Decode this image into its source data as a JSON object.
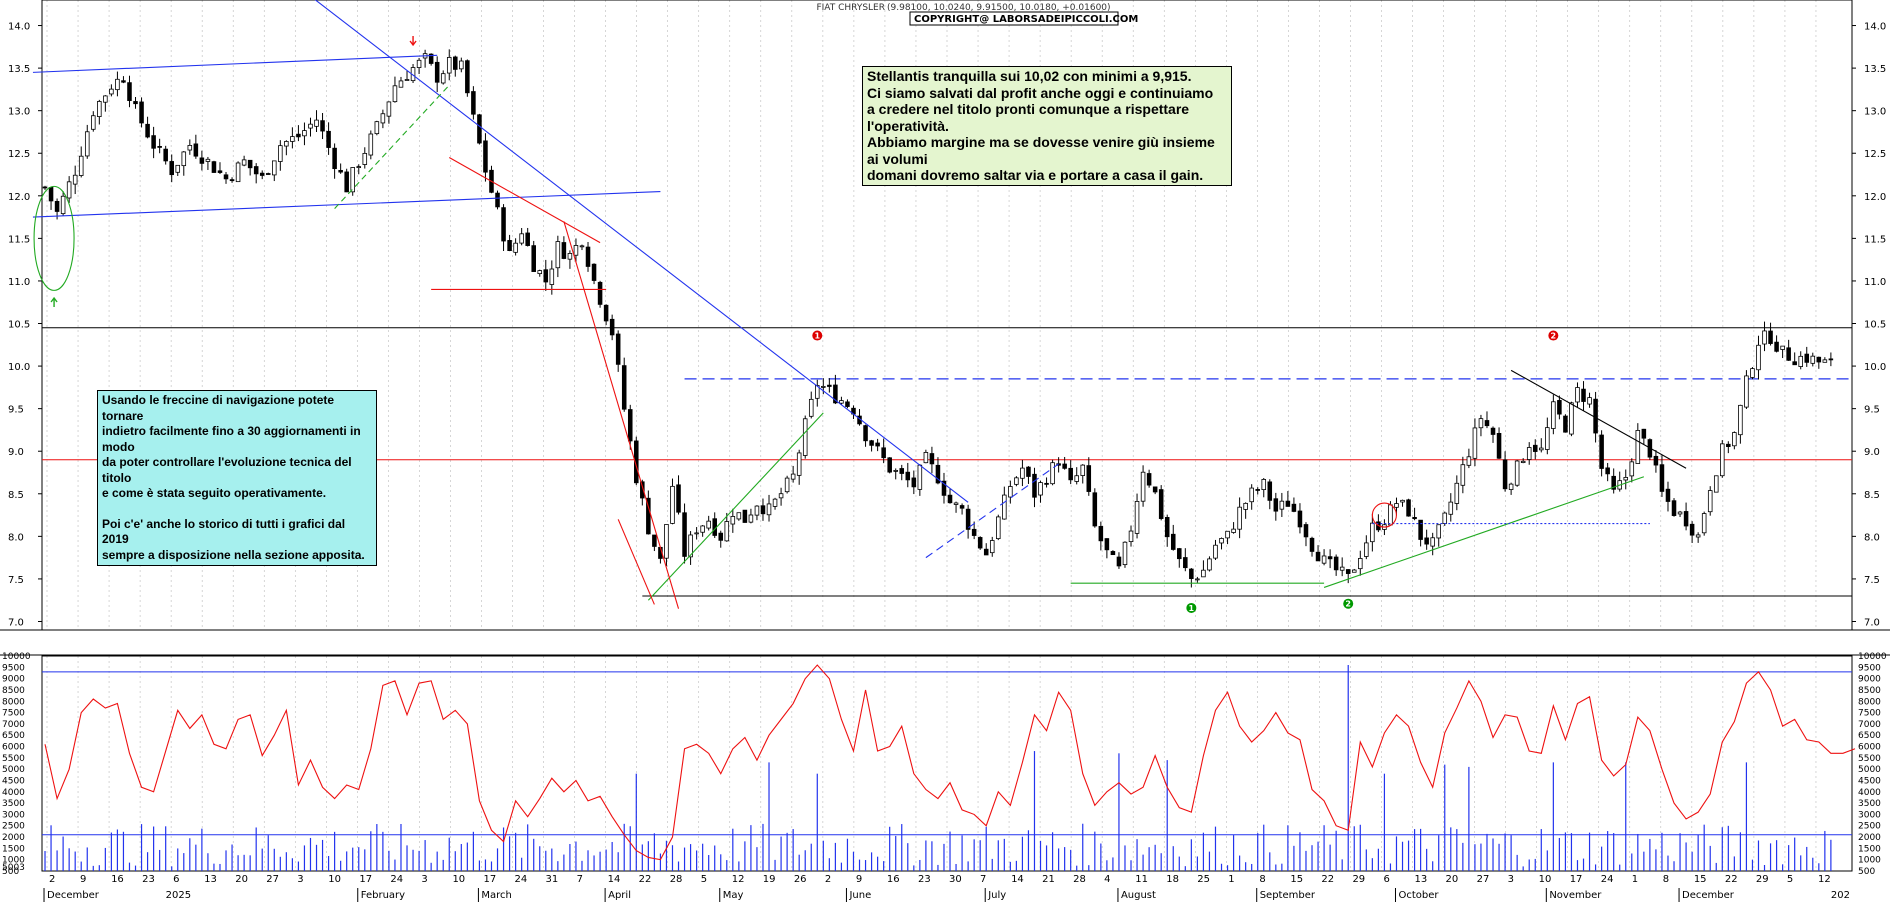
{
  "header": {
    "title": "FIAT CHRYSLER",
    "quote": "(9.98100, 10.0240, 9.91500, 10.0180, +0.01600)",
    "copyright": "COPYRIGHT@ LABORSADEIPICCOLI.COM"
  },
  "notes": {
    "main": [
      "Stellantis tranquilla sui 10,02 con minimi a 9,915.",
      "Ci siamo salvati dal profit anche oggi e continuiamo",
      "a credere nel titolo pronti comunque a rispettare l'operatività.",
      "Abbiamo margine ma se dovesse venire giù insieme ai volumi",
      "domani dovremo saltar via e portare a casa il gain."
    ],
    "nav": [
      "Usando le freccine di navigazione potete tornare",
      "indietro facilmente fino a 30 aggiornamenti in modo",
      "da poter controllare l'evoluzione tecnica del titolo",
      "e come è stata seguito operativamente.",
      "",
      "Poi c'e' anche lo storico di tutti i grafici dal 2019",
      "sempre a disposizione nella sezione apposita."
    ]
  },
  "chart_data": [
    {
      "type": "candlestick",
      "title": "FIAT CHRYSLER",
      "ylim": [
        6.9,
        14.3
      ],
      "yticks": [
        7.0,
        7.5,
        8.0,
        8.5,
        9.0,
        9.5,
        10.0,
        10.5,
        11.0,
        11.5,
        12.0,
        12.5,
        13.0,
        13.5,
        14.0
      ],
      "grid": true,
      "close_path": [
        [
          0,
          12.1
        ],
        [
          2,
          11.8
        ],
        [
          5,
          12.3
        ],
        [
          8,
          13.0
        ],
        [
          11,
          13.3
        ],
        [
          13,
          13.4
        ],
        [
          15,
          13.0
        ],
        [
          18,
          12.6
        ],
        [
          21,
          12.3
        ],
        [
          24,
          12.6
        ],
        [
          27,
          12.4
        ],
        [
          30,
          12.2
        ],
        [
          33,
          12.4
        ],
        [
          36,
          12.2
        ],
        [
          39,
          12.6
        ],
        [
          42,
          12.7
        ],
        [
          45,
          12.9
        ],
        [
          48,
          12.4
        ],
        [
          50,
          12.1
        ],
        [
          52,
          12.4
        ],
        [
          55,
          12.8
        ],
        [
          58,
          13.3
        ],
        [
          61,
          13.5
        ],
        [
          63,
          13.6
        ],
        [
          65,
          13.4
        ],
        [
          67,
          13.55
        ],
        [
          69,
          13.5
        ],
        [
          71,
          12.9
        ],
        [
          73,
          12.3
        ],
        [
          75,
          11.8
        ],
        [
          77,
          11.3
        ],
        [
          79,
          11.6
        ],
        [
          81,
          11.2
        ],
        [
          83,
          11.0
        ],
        [
          85,
          11.4
        ],
        [
          87,
          11.3
        ],
        [
          89,
          11.5
        ],
        [
          91,
          11.0
        ],
        [
          92,
          10.8
        ],
        [
          94,
          10.4
        ],
        [
          96,
          9.5
        ],
        [
          98,
          8.7
        ],
        [
          100,
          8.1
        ],
        [
          102,
          7.7
        ],
        [
          104,
          8.6
        ],
        [
          106,
          7.8
        ],
        [
          108,
          8.1
        ],
        [
          110,
          8.2
        ],
        [
          112,
          8.0
        ],
        [
          114,
          8.3
        ],
        [
          116,
          8.2
        ],
        [
          118,
          8.4
        ],
        [
          120,
          8.3
        ],
        [
          122,
          8.5
        ],
        [
          124,
          8.7
        ],
        [
          126,
          9.3
        ],
        [
          128,
          9.8
        ],
        [
          130,
          9.7
        ],
        [
          132,
          9.6
        ],
        [
          134,
          9.5
        ],
        [
          136,
          9.2
        ],
        [
          138,
          9.0
        ],
        [
          140,
          8.8
        ],
        [
          142,
          8.7
        ],
        [
          144,
          8.6
        ],
        [
          146,
          8.9
        ],
        [
          148,
          8.7
        ],
        [
          150,
          8.4
        ],
        [
          152,
          8.3
        ],
        [
          154,
          8.0
        ],
        [
          156,
          7.8
        ],
        [
          158,
          8.2
        ],
        [
          160,
          8.6
        ],
        [
          162,
          8.8
        ],
        [
          164,
          8.5
        ],
        [
          166,
          8.7
        ],
        [
          168,
          8.9
        ],
        [
          170,
          8.6
        ],
        [
          172,
          8.8
        ],
        [
          174,
          8.1
        ],
        [
          176,
          7.8
        ],
        [
          178,
          7.6
        ],
        [
          180,
          8.1
        ],
        [
          182,
          8.8
        ],
        [
          184,
          8.5
        ],
        [
          186,
          8.0
        ],
        [
          188,
          7.7
        ],
        [
          190,
          7.5
        ],
        [
          192,
          7.6
        ],
        [
          194,
          7.9
        ],
        [
          196,
          8.0
        ],
        [
          198,
          8.3
        ],
        [
          200,
          8.5
        ],
        [
          202,
          8.6
        ],
        [
          204,
          8.3
        ],
        [
          206,
          8.4
        ],
        [
          208,
          8.2
        ],
        [
          210,
          7.9
        ],
        [
          212,
          7.7
        ],
        [
          214,
          7.6
        ],
        [
          216,
          7.5
        ],
        [
          218,
          7.8
        ],
        [
          220,
          8.1
        ],
        [
          222,
          8.2
        ],
        [
          224,
          8.4
        ],
        [
          226,
          8.3
        ],
        [
          228,
          8.0
        ],
        [
          230,
          7.9
        ],
        [
          232,
          8.2
        ],
        [
          234,
          8.6
        ],
        [
          236,
          9.0
        ],
        [
          238,
          9.4
        ],
        [
          240,
          9.2
        ],
        [
          242,
          8.6
        ],
        [
          244,
          8.8
        ],
        [
          246,
          9.1
        ],
        [
          248,
          9.0
        ],
        [
          250,
          9.5
        ],
        [
          252,
          9.3
        ],
        [
          254,
          9.7
        ],
        [
          256,
          9.6
        ],
        [
          258,
          8.8
        ],
        [
          260,
          8.5
        ],
        [
          262,
          8.7
        ],
        [
          264,
          9.2
        ],
        [
          266,
          9.0
        ],
        [
          268,
          8.5
        ],
        [
          270,
          8.3
        ],
        [
          272,
          8.2
        ],
        [
          274,
          8.0
        ],
        [
          276,
          8.6
        ],
        [
          278,
          9.0
        ],
        [
          280,
          9.2
        ],
        [
          282,
          9.8
        ],
        [
          284,
          10.3
        ],
        [
          286,
          10.35
        ],
        [
          288,
          10.15
        ],
        [
          290,
          10.1
        ],
        [
          292,
          10.1
        ],
        [
          294,
          10.05
        ],
        [
          296,
          10.02
        ]
      ],
      "levels": [
        10.45,
        8.9,
        7.3
      ],
      "dashed_levels": [
        9.85
      ],
      "markers": [
        {
          "text": "1",
          "color": "#dd0000",
          "at": [
            128,
            10.3
          ]
        },
        {
          "text": "2",
          "color": "#dd0000",
          "at": [
            250,
            10.3
          ]
        },
        {
          "text": "1",
          "color": "#009900",
          "at": [
            190,
            7.1
          ]
        },
        {
          "text": "2",
          "color": "#009900",
          "at": [
            216,
            7.15
          ]
        }
      ]
    },
    {
      "type": "bar+line",
      "ylim": [
        500,
        10000
      ],
      "yticks": [
        500,
        1000,
        1500,
        2000,
        2500,
        3000,
        3500,
        4000,
        4500,
        5000,
        5500,
        6000,
        6500,
        7000,
        7500,
        8000,
        8500,
        9000,
        9500,
        10000
      ],
      "levels": [
        9300,
        2100
      ],
      "oscillator": [
        [
          0,
          6100
        ],
        [
          2,
          3700
        ],
        [
          4,
          5000
        ],
        [
          6,
          7500
        ],
        [
          8,
          8100
        ],
        [
          10,
          7700
        ],
        [
          12,
          7900
        ],
        [
          14,
          5700
        ],
        [
          16,
          4200
        ],
        [
          18,
          4000
        ],
        [
          20,
          5800
        ],
        [
          22,
          7600
        ],
        [
          24,
          6800
        ],
        [
          26,
          7400
        ],
        [
          28,
          6100
        ],
        [
          30,
          5900
        ],
        [
          32,
          7200
        ],
        [
          34,
          7400
        ],
        [
          36,
          5600
        ],
        [
          38,
          6500
        ],
        [
          40,
          7600
        ],
        [
          42,
          4300
        ],
        [
          44,
          5400
        ],
        [
          46,
          4200
        ],
        [
          48,
          3700
        ],
        [
          50,
          4300
        ],
        [
          52,
          4100
        ],
        [
          54,
          5900
        ],
        [
          56,
          8700
        ],
        [
          58,
          8900
        ],
        [
          60,
          7400
        ],
        [
          62,
          8800
        ],
        [
          64,
          8900
        ],
        [
          66,
          7200
        ],
        [
          68,
          7600
        ],
        [
          70,
          7000
        ],
        [
          72,
          3600
        ],
        [
          74,
          2300
        ],
        [
          76,
          1800
        ],
        [
          78,
          3600
        ],
        [
          80,
          2900
        ],
        [
          82,
          3700
        ],
        [
          84,
          4600
        ],
        [
          86,
          4000
        ],
        [
          88,
          4500
        ],
        [
          90,
          3600
        ],
        [
          92,
          3800
        ],
        [
          94,
          2900
        ],
        [
          96,
          2100
        ],
        [
          98,
          1400
        ],
        [
          100,
          1100
        ],
        [
          102,
          1000
        ],
        [
          104,
          2000
        ],
        [
          106,
          5900
        ],
        [
          108,
          6100
        ],
        [
          110,
          5700
        ],
        [
          112,
          4800
        ],
        [
          114,
          5900
        ],
        [
          116,
          6400
        ],
        [
          118,
          5400
        ],
        [
          120,
          6500
        ],
        [
          122,
          7200
        ],
        [
          124,
          7900
        ],
        [
          126,
          9000
        ],
        [
          128,
          9600
        ],
        [
          130,
          9000
        ],
        [
          132,
          7200
        ],
        [
          134,
          5800
        ],
        [
          136,
          8500
        ],
        [
          138,
          5800
        ],
        [
          140,
          6000
        ],
        [
          142,
          6900
        ],
        [
          144,
          4800
        ],
        [
          146,
          4100
        ],
        [
          148,
          3700
        ],
        [
          150,
          4400
        ],
        [
          152,
          3200
        ],
        [
          154,
          3000
        ],
        [
          156,
          2500
        ],
        [
          158,
          4000
        ],
        [
          160,
          3400
        ],
        [
          162,
          5300
        ],
        [
          164,
          7400
        ],
        [
          166,
          6700
        ],
        [
          168,
          8400
        ],
        [
          170,
          7600
        ],
        [
          172,
          4800
        ],
        [
          174,
          3400
        ],
        [
          176,
          4000
        ],
        [
          178,
          4400
        ],
        [
          180,
          3900
        ],
        [
          182,
          4200
        ],
        [
          184,
          5600
        ],
        [
          186,
          4200
        ],
        [
          188,
          3300
        ],
        [
          190,
          3100
        ],
        [
          192,
          5600
        ],
        [
          194,
          7600
        ],
        [
          196,
          8400
        ],
        [
          198,
          6900
        ],
        [
          200,
          6200
        ],
        [
          202,
          6700
        ],
        [
          204,
          7500
        ],
        [
          206,
          6600
        ],
        [
          208,
          6300
        ],
        [
          210,
          4100
        ],
        [
          212,
          3600
        ],
        [
          214,
          2500
        ],
        [
          216,
          2300
        ],
        [
          218,
          6200
        ],
        [
          220,
          5100
        ],
        [
          222,
          6600
        ],
        [
          224,
          7400
        ],
        [
          226,
          6900
        ],
        [
          228,
          5300
        ],
        [
          230,
          4200
        ],
        [
          232,
          6600
        ],
        [
          234,
          7700
        ],
        [
          236,
          8900
        ],
        [
          238,
          8000
        ],
        [
          240,
          6400
        ],
        [
          242,
          7400
        ],
        [
          244,
          7300
        ],
        [
          246,
          5800
        ],
        [
          248,
          5700
        ],
        [
          250,
          7800
        ],
        [
          252,
          6300
        ],
        [
          254,
          7900
        ],
        [
          256,
          8200
        ],
        [
          258,
          5400
        ],
        [
          260,
          4700
        ],
        [
          262,
          5200
        ],
        [
          264,
          7300
        ],
        [
          266,
          6700
        ],
        [
          268,
          5000
        ],
        [
          270,
          3500
        ],
        [
          272,
          2800
        ],
        [
          274,
          3100
        ],
        [
          276,
          3900
        ],
        [
          278,
          6200
        ],
        [
          280,
          7100
        ],
        [
          282,
          8800
        ],
        [
          284,
          9300
        ],
        [
          286,
          8500
        ],
        [
          288,
          6900
        ],
        [
          290,
          7200
        ],
        [
          292,
          6300
        ],
        [
          294,
          6200
        ],
        [
          296,
          5700
        ],
        [
          298,
          5700
        ],
        [
          300,
          5900
        ]
      ],
      "volume_spikes": [
        [
          98,
          4800
        ],
        [
          120,
          5300
        ],
        [
          128,
          4800
        ],
        [
          164,
          5800
        ],
        [
          178,
          5700
        ],
        [
          186,
          5400
        ],
        [
          216,
          9600
        ],
        [
          222,
          4800
        ],
        [
          232,
          5200
        ],
        [
          236,
          5100
        ],
        [
          250,
          5300
        ],
        [
          262,
          5300
        ],
        [
          282,
          5300
        ]
      ]
    }
  ],
  "x_axis": {
    "days": [
      "2",
      "9",
      "16",
      "23",
      "6",
      "13",
      "20",
      "27",
      "3",
      "10",
      "17",
      "24",
      "3",
      "10",
      "17",
      "24",
      "31",
      "7",
      "14",
      "22",
      "28",
      "5",
      "12",
      "19",
      "26",
      "2",
      "9",
      "16",
      "23",
      "30",
      "7",
      "14",
      "21",
      "28",
      "4",
      "11",
      "18",
      "25",
      "1",
      "8",
      "15",
      "22",
      "29",
      "6",
      "13",
      "20",
      "27",
      "3",
      "10",
      "17",
      "24",
      "1",
      "8",
      "15",
      "22",
      "29",
      "5",
      "12"
    ],
    "years": [
      "2025",
      "202"
    ],
    "months": [
      "December",
      "February",
      "March",
      "April",
      "May",
      "June",
      "July",
      "August",
      "September",
      "October",
      "November",
      "December"
    ],
    "panel_edge_label": "5003"
  },
  "colors": {
    "candle_up": "#ffffff",
    "candle_down": "#000000",
    "trend_blue": "#2233ee",
    "trend_red": "#ee1111",
    "trend_green": "#22aa22",
    "level_red": "#ee1111",
    "oscillator": "#ee1111",
    "volume": "#2233ee",
    "note_green_bg": "#e4f5cf",
    "note_cyan_bg": "#a6f0ee"
  }
}
